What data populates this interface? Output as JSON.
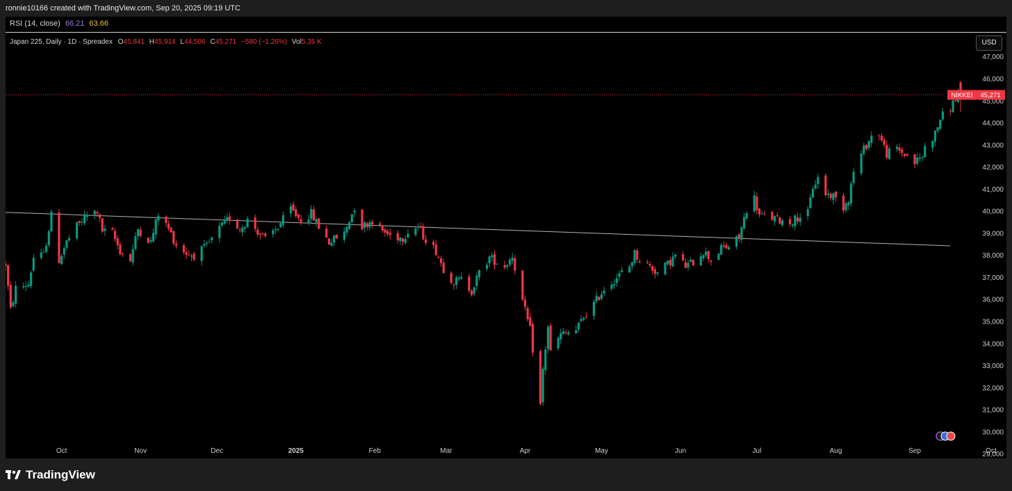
{
  "header": {
    "attribution": "ronnie10166 created with TradingView.com, Sep 20, 2025 09:19 UTC"
  },
  "rsi": {
    "label": "RSI (14, close)",
    "value1": "66.21",
    "value2": "63.66"
  },
  "legend": {
    "symbol": "Japan 225, Daily · 1D · Spreadex",
    "open_label": "O",
    "open": "45,841",
    "high_label": "H",
    "high": "45,914",
    "low_label": "L",
    "low": "44,506",
    "close_label": "C",
    "close": "45,271",
    "change": "−580 (−1.26%)",
    "vol_label": "Vol",
    "vol": "5.35 K"
  },
  "currency_button": "USD",
  "price_tag": {
    "name": "NIKKEI",
    "value": "45,271"
  },
  "footer": {
    "brand": "TradingView"
  },
  "colors": {
    "up": "#089981",
    "down": "#f23645",
    "background": "#000000",
    "trendline": "#b4b4b4"
  },
  "chart_data": {
    "type": "candlestick",
    "y_axis": {
      "ticks": [
        "47,000",
        "46,000",
        "45,000",
        "44,000",
        "43,000",
        "42,000",
        "41,000",
        "40,000",
        "39,000",
        "38,000",
        "37,000",
        "36,000",
        "35,000",
        "34,000",
        "33,000",
        "32,000",
        "31,000",
        "30,000",
        "29,000"
      ],
      "range": [
        28800,
        47400
      ],
      "position": "right"
    },
    "x_axis": {
      "labels": [
        {
          "text": "Oct",
          "date": "2024-10-01"
        },
        {
          "text": "Nov",
          "date": "2024-11-01"
        },
        {
          "text": "Dec",
          "date": "2024-12-01"
        },
        {
          "text": "2025",
          "date": "2025-01-01",
          "bold": true
        },
        {
          "text": "Feb",
          "date": "2025-02-01"
        },
        {
          "text": "Mar",
          "date": "2025-03-01"
        },
        {
          "text": "Apr",
          "date": "2025-04-01"
        },
        {
          "text": "May",
          "date": "2025-05-01"
        },
        {
          "text": "Jun",
          "date": "2025-06-01"
        },
        {
          "text": "Jul",
          "date": "2025-07-01"
        },
        {
          "text": "Aug",
          "date": "2025-08-01"
        },
        {
          "text": "Sep",
          "date": "2025-09-01"
        },
        {
          "text": "Oct",
          "date": "2025-10-01"
        }
      ],
      "range": [
        "2024-09-09",
        "2025-10-07"
      ]
    },
    "last_price": 45271,
    "trendline": {
      "start": {
        "date": "2024-09-09",
        "value": 39950
      },
      "end": {
        "date": "2025-09-15",
        "value": 38430
      }
    },
    "anchors": [
      [
        "2024-09-09",
        37600
      ],
      [
        "2024-09-11",
        35500
      ],
      [
        "2024-09-13",
        36500
      ],
      [
        "2024-09-18",
        36700
      ],
      [
        "2024-09-20",
        37900
      ],
      [
        "2024-09-24",
        38000
      ],
      [
        "2024-09-27",
        39800
      ],
      [
        "2024-09-30",
        37800
      ],
      [
        "2024-10-03",
        38600
      ],
      [
        "2024-10-07",
        39300
      ],
      [
        "2024-10-11",
        39800
      ],
      [
        "2024-10-15",
        40000
      ],
      [
        "2024-10-17",
        39100
      ],
      [
        "2024-10-21",
        39000
      ],
      [
        "2024-10-24",
        38200
      ],
      [
        "2024-10-28",
        37800
      ],
      [
        "2024-10-31",
        39200
      ],
      [
        "2024-11-05",
        38600
      ],
      [
        "2024-11-08",
        39900
      ],
      [
        "2024-11-12",
        39200
      ],
      [
        "2024-11-15",
        38500
      ],
      [
        "2024-11-19",
        38100
      ],
      [
        "2024-11-22",
        38000
      ],
      [
        "2024-11-27",
        38400
      ],
      [
        "2024-12-02",
        39200
      ],
      [
        "2024-12-06",
        39700
      ],
      [
        "2024-12-10",
        39200
      ],
      [
        "2024-12-13",
        39600
      ],
      [
        "2024-12-17",
        39100
      ],
      [
        "2024-12-20",
        38700
      ],
      [
        "2024-12-25",
        39300
      ],
      [
        "2024-12-30",
        40100
      ],
      [
        "2025-01-03",
        39600
      ],
      [
        "2025-01-07",
        39900
      ],
      [
        "2025-01-10",
        39300
      ],
      [
        "2025-01-14",
        38600
      ],
      [
        "2025-01-17",
        38800
      ],
      [
        "2025-01-20",
        39000
      ],
      [
        "2025-01-24",
        40200
      ],
      [
        "2025-01-27",
        39300
      ],
      [
        "2025-01-31",
        39600
      ],
      [
        "2025-02-04",
        39100
      ],
      [
        "2025-02-07",
        38900
      ],
      [
        "2025-02-12",
        38800
      ],
      [
        "2025-02-14",
        39100
      ],
      [
        "2025-02-18",
        39300
      ],
      [
        "2025-02-20",
        38900
      ],
      [
        "2025-02-25",
        38200
      ],
      [
        "2025-02-28",
        37400
      ],
      [
        "2025-03-04",
        36800
      ],
      [
        "2025-03-07",
        36900
      ],
      [
        "2025-03-11",
        36400
      ],
      [
        "2025-03-14",
        37200
      ],
      [
        "2025-03-18",
        37900
      ],
      [
        "2025-03-21",
        37700
      ],
      [
        "2025-03-24",
        37500
      ],
      [
        "2025-03-27",
        38000
      ],
      [
        "2025-03-31",
        35900
      ],
      [
        "2025-04-03",
        34600
      ],
      [
        "2025-04-07",
        31200
      ],
      [
        "2025-04-08",
        32800
      ],
      [
        "2025-04-10",
        34800
      ],
      [
        "2025-04-11",
        33600
      ],
      [
        "2025-04-15",
        34400
      ],
      [
        "2025-04-21",
        34600
      ],
      [
        "2025-04-24",
        35200
      ],
      [
        "2025-04-28",
        35800
      ],
      [
        "2025-05-02",
        36500
      ],
      [
        "2025-05-07",
        37000
      ],
      [
        "2025-05-12",
        37500
      ],
      [
        "2025-05-14",
        38100
      ],
      [
        "2025-05-16",
        37800
      ],
      [
        "2025-05-20",
        37500
      ],
      [
        "2025-05-23",
        37200
      ],
      [
        "2025-05-27",
        37600
      ],
      [
        "2025-05-30",
        38000
      ],
      [
        "2025-06-03",
        37500
      ],
      [
        "2025-06-06",
        37700
      ],
      [
        "2025-06-10",
        38200
      ],
      [
        "2025-06-13",
        37800
      ],
      [
        "2025-06-17",
        38300
      ],
      [
        "2025-06-20",
        38400
      ],
      [
        "2025-06-24",
        38800
      ],
      [
        "2025-06-27",
        40100
      ],
      [
        "2025-06-30",
        40600
      ],
      [
        "2025-07-02",
        39800
      ],
      [
        "2025-07-07",
        39700
      ],
      [
        "2025-07-10",
        39600
      ],
      [
        "2025-07-14",
        39500
      ],
      [
        "2025-07-18",
        39800
      ],
      [
        "2025-07-21",
        39900
      ],
      [
        "2025-07-23",
        41100
      ],
      [
        "2025-07-25",
        41500
      ],
      [
        "2025-07-28",
        40800
      ],
      [
        "2025-07-31",
        40700
      ],
      [
        "2025-08-04",
        40200
      ],
      [
        "2025-08-06",
        40600
      ],
      [
        "2025-08-08",
        41800
      ],
      [
        "2025-08-12",
        42800
      ],
      [
        "2025-08-15",
        43400
      ],
      [
        "2025-08-18",
        43500
      ],
      [
        "2025-08-21",
        42600
      ],
      [
        "2025-08-25",
        42800
      ],
      [
        "2025-08-28",
        42600
      ],
      [
        "2025-09-01",
        42200
      ],
      [
        "2025-09-04",
        42500
      ],
      [
        "2025-09-05",
        42900
      ],
      [
        "2025-09-09",
        43500
      ],
      [
        "2025-09-11",
        44200
      ],
      [
        "2025-09-15",
        44700
      ],
      [
        "2025-09-18",
        45300
      ],
      [
        "2025-09-19",
        45271
      ]
    ]
  }
}
